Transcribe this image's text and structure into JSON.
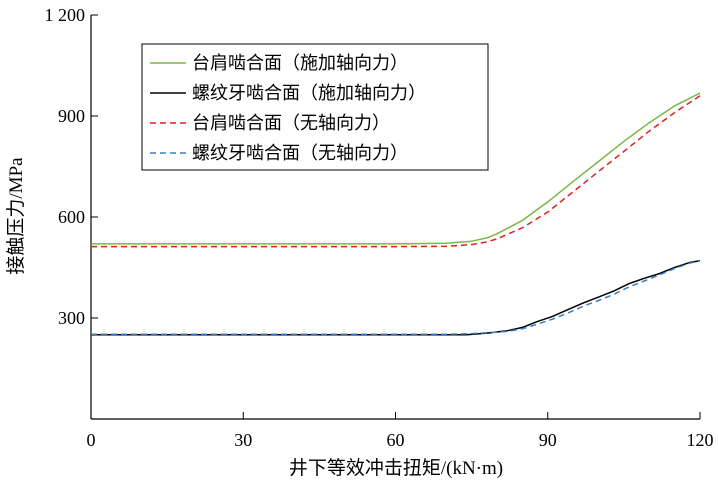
{
  "chart_data": {
    "type": "line",
    "title": "",
    "xlabel": "井下等效冲击扭矩/(kN·m)",
    "ylabel": "接触压力/MPa",
    "xlim": [
      0,
      120
    ],
    "ylim": [
      0,
      1200
    ],
    "xticks": [
      0,
      30,
      60,
      90,
      120
    ],
    "xtick_labels": [
      "0",
      "30",
      "60",
      "90",
      "120"
    ],
    "yticks": [
      300,
      600,
      900,
      1200
    ],
    "ytick_labels": [
      "300",
      "600",
      "900",
      "1 200"
    ],
    "grid": false,
    "legend_position": "top-left",
    "series": [
      {
        "name": "台肩啮合面（施加轴向力）",
        "color": "#7ab648",
        "dash": "solid",
        "x": [
          0,
          10,
          20,
          30,
          40,
          50,
          60,
          70,
          75,
          78,
          80,
          85,
          90,
          95,
          100,
          105,
          110,
          115,
          120
        ],
        "y": [
          520,
          520,
          520,
          520,
          520,
          520,
          520,
          522,
          528,
          538,
          550,
          590,
          645,
          705,
          765,
          825,
          880,
          930,
          968
        ]
      },
      {
        "name": "螺纹牙啮合面（施加轴向力）",
        "color": "#000000",
        "dash": "solid",
        "x": [
          0,
          10,
          20,
          30,
          40,
          50,
          60,
          70,
          74,
          78,
          82,
          85,
          88,
          91,
          94,
          97,
          100,
          103,
          106,
          109,
          112,
          115,
          118,
          120
        ],
        "y": [
          250,
          250,
          250,
          250,
          250,
          250,
          250,
          250,
          250,
          255,
          262,
          272,
          290,
          305,
          325,
          345,
          362,
          380,
          402,
          418,
          432,
          450,
          465,
          470
        ]
      },
      {
        "name": "台肩啮合面（无轴向力）",
        "color": "#e02020",
        "dash": "dashed",
        "x": [
          0,
          10,
          20,
          30,
          40,
          50,
          60,
          70,
          75,
          78,
          80,
          85,
          90,
          95,
          100,
          105,
          110,
          115,
          120
        ],
        "y": [
          512,
          512,
          512,
          512,
          512,
          512,
          512,
          513,
          518,
          526,
          535,
          568,
          615,
          675,
          735,
          795,
          855,
          910,
          960
        ]
      },
      {
        "name": "螺纹牙啮合面（无轴向力）",
        "color": "#3a7fc4",
        "dash": "dashed",
        "x": [
          0,
          10,
          20,
          30,
          40,
          50,
          60,
          70,
          74,
          78,
          82,
          85,
          88,
          91,
          94,
          97,
          100,
          103,
          106,
          109,
          112,
          115,
          118,
          120
        ],
        "y": [
          252,
          252,
          252,
          252,
          252,
          252,
          252,
          252,
          253,
          256,
          260,
          268,
          282,
          297,
          315,
          335,
          352,
          370,
          392,
          410,
          428,
          447,
          463,
          470
        ]
      }
    ]
  }
}
